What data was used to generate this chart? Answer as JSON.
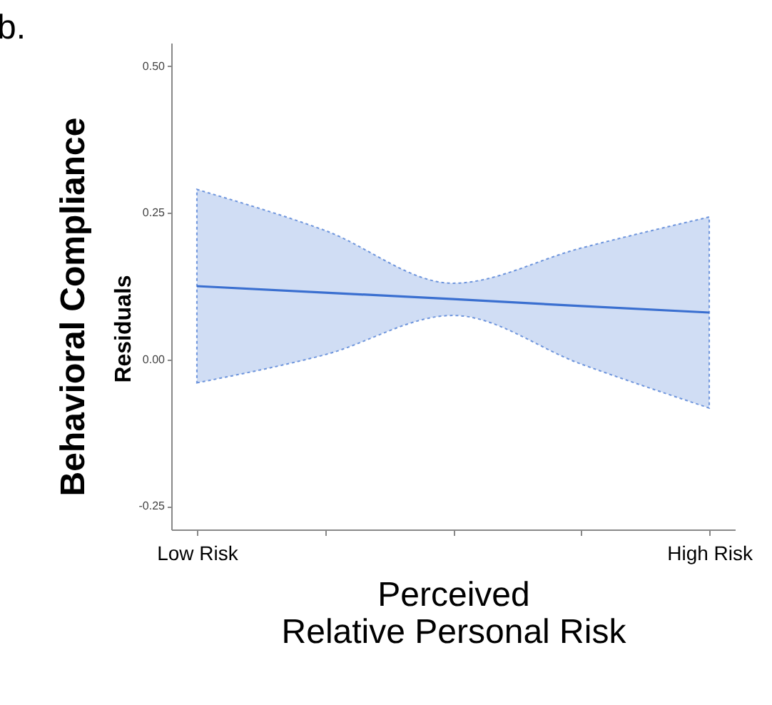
{
  "chart_data": {
    "type": "line",
    "xlabel": "Perceived\nRelative Personal Risk",
    "ylabel": "Residuals",
    "annotations": [
      "b.",
      "Behavioral Compliance"
    ],
    "categories": [
      "Low Risk",
      null,
      null,
      null,
      "High Risk"
    ],
    "series": [
      {
        "color": "#3a6fd0",
        "line_style": "solid",
        "values": [
          0.125,
          0.114,
          0.103,
          0.091,
          0.08
        ],
        "upper": [
          0.29,
          0.22,
          0.13,
          0.19,
          0.243
        ],
        "lower": [
          -0.04,
          0.008,
          0.075,
          -0.008,
          -0.083
        ]
      }
    ],
    "ylim": [
      -0.29,
      0.54
    ],
    "yticks": [
      {
        "value": -0.25,
        "label": "-0.25"
      },
      {
        "value": 0,
        "label": "0.00"
      },
      {
        "value": 0.25,
        "label": "0.25"
      },
      {
        "value": 0.5,
        "label": "0.50"
      }
    ],
    "grid": false,
    "legend": false,
    "marker": "none"
  }
}
